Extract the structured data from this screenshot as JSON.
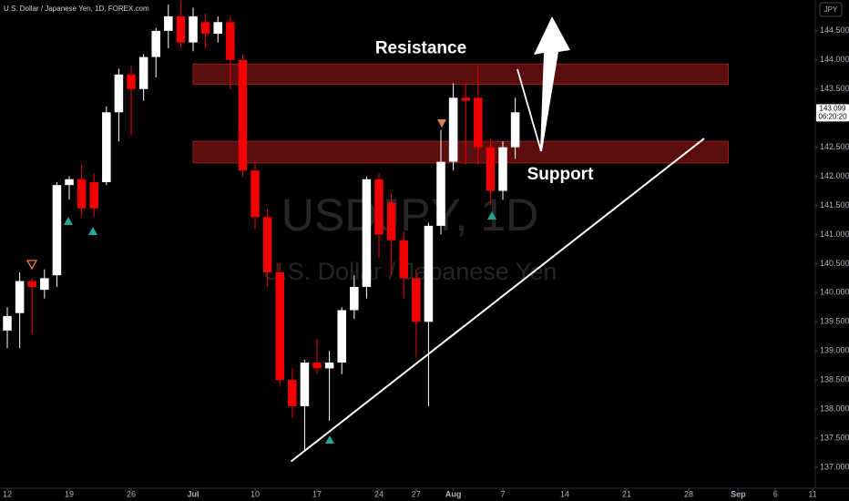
{
  "chart_data": {
    "type": "candlestick",
    "title": "U.S. Dollar / Japanese Yen, 1D, FOREX.com",
    "watermark": "USDJPY, 1D",
    "watermark_subtitle": "U.S. Dollar / Japanese Yen",
    "currency_button": "JPY",
    "x": [
      0,
      1,
      2,
      3,
      4,
      5,
      6,
      7,
      8,
      9,
      10,
      11,
      12,
      13,
      14,
      15,
      16,
      17,
      18,
      19,
      20,
      21,
      22,
      23,
      24,
      25,
      26,
      27,
      28,
      29,
      30,
      31,
      32,
      33,
      34,
      35,
      36,
      37,
      38,
      39,
      40,
      41
    ],
    "open": [
      139.35,
      139.65,
      140.2,
      140.05,
      140.3,
      141.85,
      141.95,
      141.9,
      141.9,
      143.1,
      143.75,
      143.5,
      144.05,
      144.5,
      144.75,
      144.3,
      144.65,
      144.45,
      144.65,
      144.0,
      142.1,
      141.3,
      140.35,
      138.5,
      138.05,
      138.8,
      138.7,
      138.8,
      139.7,
      140.1,
      141.95,
      141.55,
      140.9,
      140.25,
      139.5,
      141.15,
      142.25,
      143.35,
      143.35,
      142.5,
      141.75,
      142.5
    ],
    "high": [
      139.75,
      140.35,
      140.25,
      140.4,
      141.9,
      142.0,
      142.2,
      142.05,
      143.2,
      143.85,
      143.9,
      144.1,
      144.55,
      144.95,
      145.0,
      144.9,
      144.8,
      144.75,
      144.75,
      144.1,
      142.25,
      141.45,
      140.5,
      138.7,
      138.85,
      139.2,
      139.0,
      139.75,
      140.3,
      142.0,
      142.05,
      141.7,
      141.05,
      140.4,
      141.2,
      142.8,
      143.6,
      143.6,
      143.9,
      142.65,
      142.6,
      143.35
    ],
    "low": [
      139.05,
      139.05,
      139.3,
      139.9,
      140.1,
      141.6,
      141.3,
      141.3,
      141.85,
      142.6,
      142.7,
      143.3,
      143.7,
      144.2,
      144.2,
      144.15,
      144.2,
      144.3,
      143.5,
      142.0,
      141.1,
      140.1,
      138.4,
      137.85,
      137.3,
      138.6,
      137.8,
      138.6,
      139.55,
      139.9,
      140.6,
      140.3,
      139.9,
      138.9,
      138.05,
      141.0,
      142.1,
      142.2,
      142.2,
      141.5,
      141.6,
      142.3
    ],
    "close": [
      139.6,
      140.2,
      140.1,
      140.25,
      141.85,
      141.95,
      141.45,
      141.45,
      143.1,
      143.75,
      143.5,
      144.05,
      144.5,
      144.75,
      144.3,
      144.75,
      144.45,
      144.65,
      144.0,
      142.1,
      141.3,
      140.35,
      138.5,
      138.05,
      138.8,
      138.7,
      138.8,
      139.7,
      140.1,
      141.95,
      141.0,
      140.9,
      140.25,
      139.5,
      141.15,
      142.25,
      143.35,
      143.3,
      142.5,
      141.75,
      142.5,
      143.1
    ],
    "up_color": "#ffffff",
    "down_color": "#f20000",
    "zones": [
      {
        "name": "Resistance",
        "from": 143.58,
        "to": 143.93,
        "x": [
          15,
          58.2
        ],
        "color": "#6b1010"
      },
      {
        "name": "Support",
        "from": 142.23,
        "to": 142.6,
        "x": [
          15,
          58.2
        ],
        "color": "#6b1010"
      }
    ],
    "trendline": {
      "x": [
        22.9,
        56.25
      ],
      "y": [
        137.1,
        142.65
      ],
      "color": "#ffffff"
    },
    "last_price": {
      "value": 143.099,
      "label": "143.099"
    },
    "countdown": "06:20:20",
    "xlim": [
      -0.59,
      65.22
    ],
    "ylim": [
      136.64,
      145.03
    ],
    "xticks": [
      {
        "value": 0,
        "label": "12"
      },
      {
        "value": 5,
        "label": "19"
      },
      {
        "value": 10,
        "label": "26"
      },
      {
        "value": 15,
        "label": "Jul"
      },
      {
        "value": 20,
        "label": "10"
      },
      {
        "value": 25,
        "label": "17"
      },
      {
        "value": 30,
        "label": "24"
      },
      {
        "value": 33,
        "label": "27"
      },
      {
        "value": 36,
        "label": "Aug"
      },
      {
        "value": 40,
        "label": "7"
      },
      {
        "value": 45,
        "label": "14"
      },
      {
        "value": 50,
        "label": "21"
      },
      {
        "value": 55,
        "label": "28"
      },
      {
        "value": 59,
        "label": "Sep"
      },
      {
        "value": 62,
        "label": "6"
      },
      {
        "value": 65,
        "label": "11"
      }
    ],
    "yticks": [
      {
        "value": 137.0,
        "label": "137.000"
      },
      {
        "value": 137.5,
        "label": "137.500"
      },
      {
        "value": 138.0,
        "label": "138.000"
      },
      {
        "value": 138.5,
        "label": "138.500"
      },
      {
        "value": 139.0,
        "label": "139.000"
      },
      {
        "value": 139.5,
        "label": "139.500"
      },
      {
        "value": 140.0,
        "label": "140.000"
      },
      {
        "value": 140.5,
        "label": "140.500"
      },
      {
        "value": 141.0,
        "label": "141.000"
      },
      {
        "value": 141.5,
        "label": "141.500"
      },
      {
        "value": 142.0,
        "label": "142.000"
      },
      {
        "value": 142.5,
        "label": "142.500"
      },
      {
        "value": 143.0,
        "label": "143.000"
      },
      {
        "value": 143.5,
        "label": "143.500"
      },
      {
        "value": 144.0,
        "label": "144.000"
      },
      {
        "value": 144.5,
        "label": "144.500"
      }
    ],
    "grid": false
  }
}
